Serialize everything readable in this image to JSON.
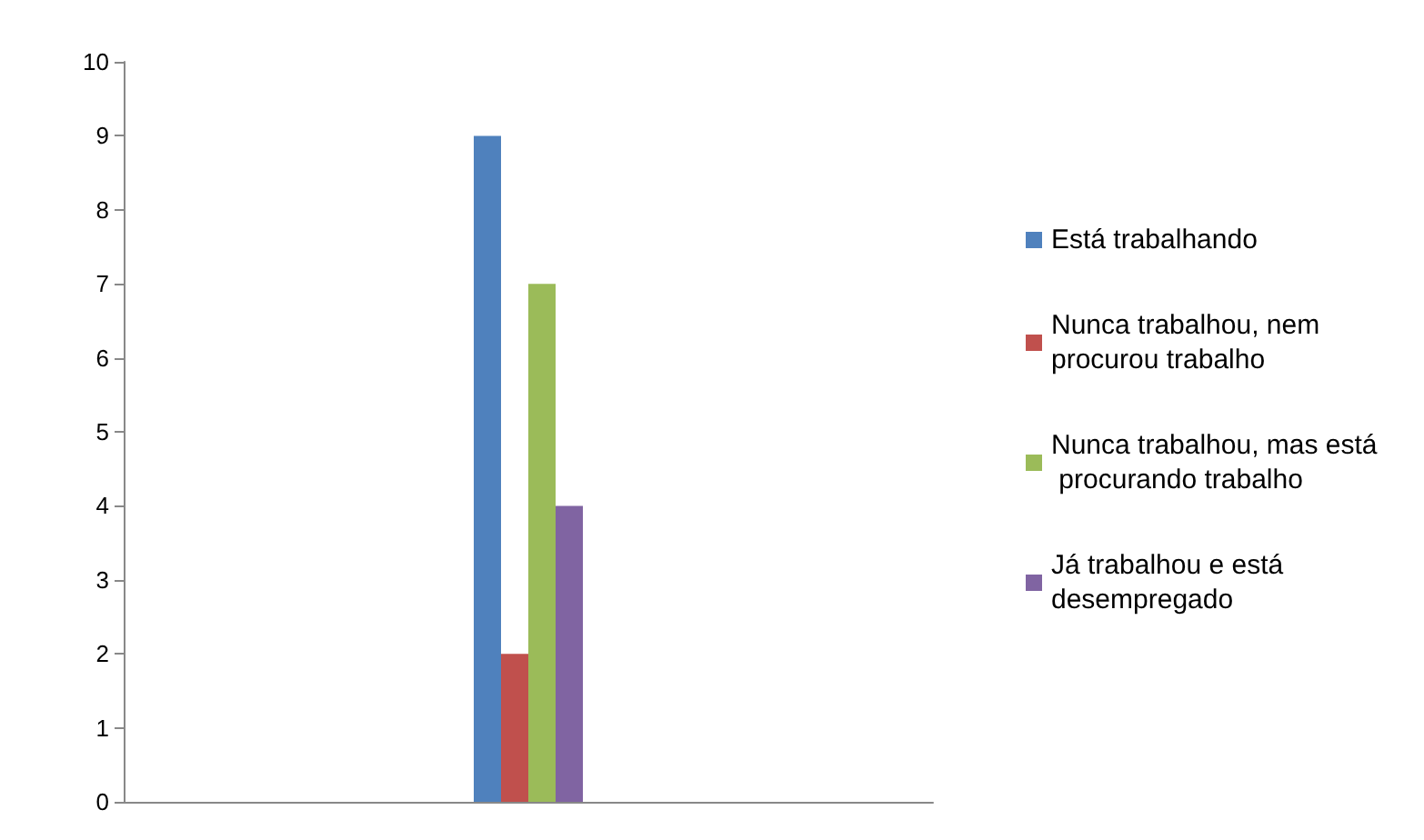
{
  "chart_data": {
    "type": "bar",
    "categories": [
      null
    ],
    "series": [
      {
        "name": "Está trabalhando",
        "color": "#4f81bd",
        "values": [
          9
        ]
      },
      {
        "name": "Nunca trabalhou, nem procurou trabalho",
        "color": "#c0504d",
        "values": [
          2
        ]
      },
      {
        "name": "Nunca trabalhou, mas está procurando trabalho",
        "color": "#9bbb59",
        "values": [
          7
        ]
      },
      {
        "name": "Já trabalhou e está desempregado",
        "color": "#8064a2",
        "values": [
          4
        ]
      }
    ],
    "ylim": [
      0,
      10
    ],
    "yticks": [
      0,
      1,
      2,
      3,
      4,
      5,
      6,
      7,
      8,
      9,
      10
    ],
    "grid": false,
    "legend": "right"
  }
}
